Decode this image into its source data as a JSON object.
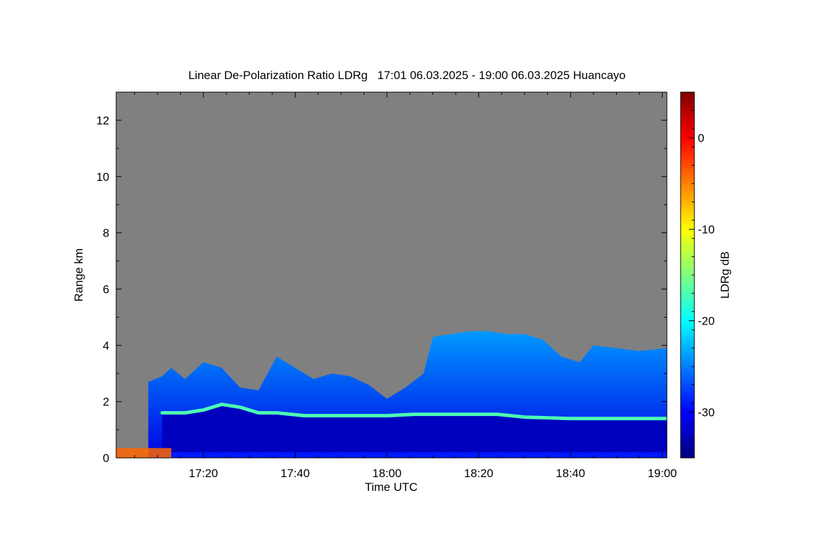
{
  "chart_data": {
    "type": "heatmap",
    "title": "Linear De-Polarization Ratio LDRg   17:01 06.03.2025 - 19:00 06.03.2025 Huancayo",
    "xlabel": "Time UTC",
    "ylabel": "Range km",
    "colorbar_label": "LDRg dB",
    "x_range_minutes_utc": [
      1021,
      1141
    ],
    "y_range_km": [
      0,
      13
    ],
    "colorbar_range_db": [
      -35,
      5
    ],
    "x_ticks": [
      {
        "minute": 1040,
        "label": "17:20"
      },
      {
        "minute": 1060,
        "label": "17:40"
      },
      {
        "minute": 1080,
        "label": "18:00"
      },
      {
        "minute": 1100,
        "label": "18:20"
      },
      {
        "minute": 1120,
        "label": "18:40"
      },
      {
        "minute": 1140,
        "label": "19:00"
      }
    ],
    "y_ticks": [
      {
        "km": 0,
        "label": "0"
      },
      {
        "km": 2,
        "label": "2"
      },
      {
        "km": 4,
        "label": "4"
      },
      {
        "km": 6,
        "label": "6"
      },
      {
        "km": 8,
        "label": "8"
      },
      {
        "km": 10,
        "label": "10"
      },
      {
        "km": 12,
        "label": "12"
      }
    ],
    "colorbar_ticks": [
      {
        "db": 0,
        "label": "0"
      },
      {
        "db": -10,
        "label": "-10"
      },
      {
        "db": -20,
        "label": "-20"
      },
      {
        "db": -30,
        "label": "-30"
      }
    ],
    "colormap": [
      "#00007f",
      "#0000ff",
      "#007fff",
      "#00ffff",
      "#7fff7f",
      "#ffff00",
      "#ff7f00",
      "#ff0000",
      "#7f0000"
    ],
    "nodata_color": "#808080",
    "signal_top_km": [
      {
        "minute": 1028,
        "km": 2.7
      },
      {
        "minute": 1031,
        "km": 2.9
      },
      {
        "minute": 1033,
        "km": 3.2
      },
      {
        "minute": 1036,
        "km": 2.8
      },
      {
        "minute": 1040,
        "km": 3.4
      },
      {
        "minute": 1044,
        "km": 3.2
      },
      {
        "minute": 1048,
        "km": 2.5
      },
      {
        "minute": 1052,
        "km": 2.4
      },
      {
        "minute": 1056,
        "km": 3.6
      },
      {
        "minute": 1060,
        "km": 3.2
      },
      {
        "minute": 1064,
        "km": 2.8
      },
      {
        "minute": 1068,
        "km": 3.0
      },
      {
        "minute": 1072,
        "km": 2.9
      },
      {
        "minute": 1076,
        "km": 2.6
      },
      {
        "minute": 1080,
        "km": 2.1
      },
      {
        "minute": 1084,
        "km": 2.5
      },
      {
        "minute": 1088,
        "km": 3.0
      },
      {
        "minute": 1090,
        "km": 4.3
      },
      {
        "minute": 1094,
        "km": 4.4
      },
      {
        "minute": 1098,
        "km": 4.5
      },
      {
        "minute": 1102,
        "km": 4.5
      },
      {
        "minute": 1106,
        "km": 4.4
      },
      {
        "minute": 1110,
        "km": 4.4
      },
      {
        "minute": 1114,
        "km": 4.2
      },
      {
        "minute": 1118,
        "km": 3.6
      },
      {
        "minute": 1122,
        "km": 3.4
      },
      {
        "minute": 1125,
        "km": 4.0
      },
      {
        "minute": 1130,
        "km": 3.9
      },
      {
        "minute": 1135,
        "km": 3.8
      },
      {
        "minute": 1141,
        "km": 3.9
      }
    ],
    "layer_height_km": [
      {
        "minute": 1031,
        "km": 1.6
      },
      {
        "minute": 1036,
        "km": 1.6
      },
      {
        "minute": 1040,
        "km": 1.7
      },
      {
        "minute": 1044,
        "km": 1.9
      },
      {
        "minute": 1048,
        "km": 1.8
      },
      {
        "minute": 1052,
        "km": 1.6
      },
      {
        "minute": 1056,
        "km": 1.6
      },
      {
        "minute": 1062,
        "km": 1.5
      },
      {
        "minute": 1068,
        "km": 1.5
      },
      {
        "minute": 1074,
        "km": 1.5
      },
      {
        "minute": 1080,
        "km": 1.5
      },
      {
        "minute": 1086,
        "km": 1.55
      },
      {
        "minute": 1092,
        "km": 1.55
      },
      {
        "minute": 1098,
        "km": 1.55
      },
      {
        "minute": 1104,
        "km": 1.55
      },
      {
        "minute": 1110,
        "km": 1.45
      },
      {
        "minute": 1120,
        "km": 1.4
      },
      {
        "minute": 1130,
        "km": 1.4
      },
      {
        "minute": 1141,
        "km": 1.4
      }
    ],
    "layer_ldr_db": -17,
    "cloud_ldr_db": -25,
    "lower_ldr_db": -31,
    "near_ground_ldr_db": -4
  }
}
